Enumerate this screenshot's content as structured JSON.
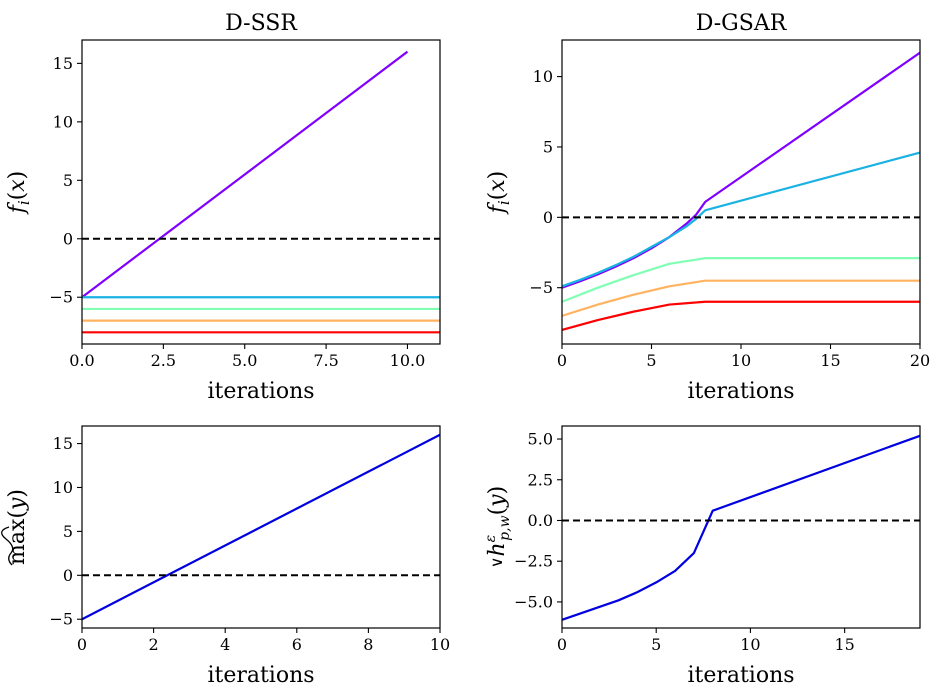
{
  "chart_data": [
    {
      "type": "line",
      "title": "D-SSR",
      "xlabel": "iterations",
      "ylabel": "f_i(x)",
      "xlim": [
        0,
        11
      ],
      "ylim": [
        -9,
        17
      ],
      "xticks": [
        0,
        2.5,
        5,
        7.5,
        10
      ],
      "xtick_labels": [
        "0.0",
        "2.5",
        "5.0",
        "7.5",
        "10.0"
      ],
      "yticks": [
        -5,
        0,
        5,
        10,
        15
      ],
      "ytick_labels": [
        "−5",
        "0",
        "5",
        "10",
        "15"
      ],
      "grid": false,
      "hline": {
        "y": 0,
        "style": "dashed",
        "color": "#000000"
      },
      "series": [
        {
          "color": "#8000ff",
          "x": [
            0,
            10
          ],
          "y": [
            -5,
            16
          ]
        },
        {
          "color": "#1ab2e2",
          "x": [
            0,
            11
          ],
          "y": [
            -5,
            -5
          ]
        },
        {
          "color": "#80ffb4",
          "x": [
            0,
            11
          ],
          "y": [
            -6,
            -6
          ]
        },
        {
          "color": "#ffb360",
          "x": [
            0,
            11
          ],
          "y": [
            -7,
            -7
          ]
        },
        {
          "color": "#ff0000",
          "x": [
            0,
            11
          ],
          "y": [
            -8,
            -8
          ]
        }
      ]
    },
    {
      "type": "line",
      "title": "D-GSAR",
      "xlabel": "iterations",
      "ylabel": "f_i(x)",
      "xlim": [
        0,
        20
      ],
      "ylim": [
        -9,
        12.6
      ],
      "xticks": [
        0,
        5,
        10,
        15,
        20
      ],
      "xtick_labels": [
        "0",
        "5",
        "10",
        "15",
        "20"
      ],
      "yticks": [
        -5,
        0,
        5,
        10
      ],
      "ytick_labels": [
        "−5",
        "0",
        "5",
        "10"
      ],
      "grid": false,
      "hline": {
        "y": 0,
        "style": "dashed",
        "color": "#000000"
      },
      "series": [
        {
          "color": "#8000ff",
          "x": [
            0,
            1,
            2,
            3,
            4,
            5,
            6,
            7,
            7.5,
            8,
            20
          ],
          "y": [
            -5,
            -4.55,
            -4.05,
            -3.5,
            -2.9,
            -2.2,
            -1.4,
            -0.4,
            0.2,
            1.1,
            11.7
          ]
        },
        {
          "color": "#1ab2e2",
          "x": [
            0,
            1,
            2,
            3,
            4,
            5,
            6,
            7,
            7.5,
            8,
            20
          ],
          "y": [
            -4.9,
            -4.45,
            -3.95,
            -3.4,
            -2.8,
            -2.1,
            -1.4,
            -0.6,
            -0.1,
            0.5,
            4.6
          ]
        },
        {
          "color": "#80ffb4",
          "x": [
            0,
            2,
            4,
            6,
            8,
            20
          ],
          "y": [
            -6,
            -5,
            -4.1,
            -3.3,
            -2.9,
            -2.9
          ]
        },
        {
          "color": "#ffb360",
          "x": [
            0,
            2,
            4,
            6,
            8,
            20
          ],
          "y": [
            -7,
            -6.2,
            -5.5,
            -4.9,
            -4.5,
            -4.5
          ]
        },
        {
          "color": "#ff0000",
          "x": [
            0,
            2,
            4,
            6,
            8,
            20
          ],
          "y": [
            -8,
            -7.3,
            -6.7,
            -6.2,
            -6,
            -6
          ]
        }
      ]
    },
    {
      "type": "line",
      "title": "",
      "xlabel": "iterations",
      "ylabel": "max(y)",
      "xlim": [
        0,
        10
      ],
      "ylim": [
        -6,
        17
      ],
      "xticks": [
        0,
        2,
        4,
        6,
        8,
        10
      ],
      "xtick_labels": [
        "0",
        "2",
        "4",
        "6",
        "8",
        "10"
      ],
      "yticks": [
        -5,
        0,
        5,
        10,
        15
      ],
      "ytick_labels": [
        "−5",
        "0",
        "5",
        "10",
        "15"
      ],
      "grid": false,
      "hline": {
        "y": 0,
        "style": "dashed",
        "color": "#000000"
      },
      "series": [
        {
          "color": "#0000e0",
          "x": [
            0,
            10
          ],
          "y": [
            -5,
            16
          ]
        }
      ]
    },
    {
      "type": "line",
      "title": "",
      "xlabel": "iterations",
      "ylabel": "∨h^ε_{p,w}(y)",
      "xlim": [
        0,
        19
      ],
      "ylim": [
        -6.6,
        5.8
      ],
      "xticks": [
        0,
        5,
        10,
        15
      ],
      "xtick_labels": [
        "0",
        "5",
        "10",
        "15"
      ],
      "yticks": [
        -5,
        -2.5,
        0,
        2.5,
        5
      ],
      "ytick_labels": [
        "−5.0",
        "−2.5",
        "0.0",
        "2.5",
        "5.0"
      ],
      "grid": false,
      "hline": {
        "y": 0,
        "style": "dashed",
        "color": "#000000"
      },
      "series": [
        {
          "color": "#0000e0",
          "x": [
            0,
            1,
            2,
            3,
            4,
            5,
            6,
            7,
            8,
            19
          ],
          "y": [
            -6.1,
            -5.7,
            -5.3,
            -4.9,
            -4.4,
            -3.8,
            -3.1,
            -2.0,
            0.6,
            5.2
          ]
        }
      ]
    }
  ]
}
